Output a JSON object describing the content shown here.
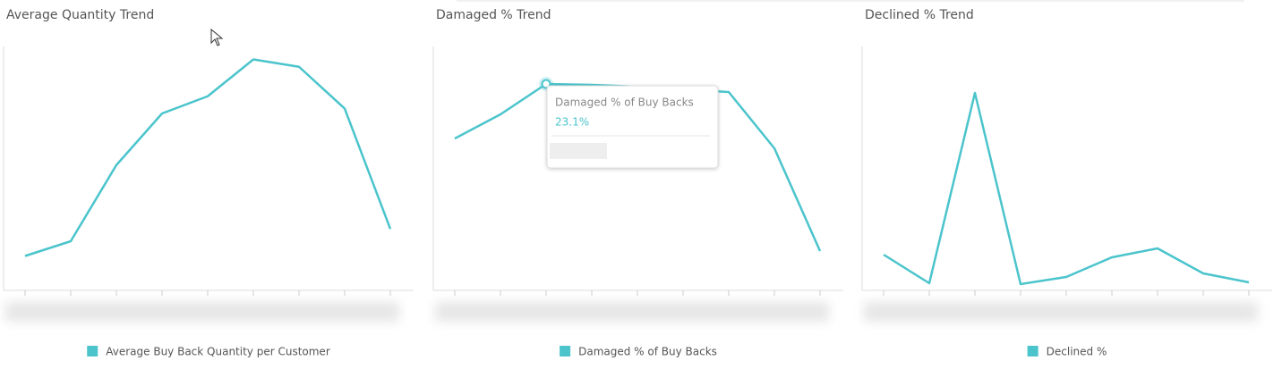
{
  "chart_data": [
    {
      "type": "line",
      "title": "Average Quantity Trend",
      "categories": [
        null,
        null,
        null,
        null,
        null,
        null,
        null,
        null,
        null
      ],
      "series": [
        {
          "name": "Average Buy Back Quantity per Customer",
          "color": "#4bc4cc",
          "values": [
            1.4,
            2.0,
            5.1,
            7.2,
            7.9,
            9.4,
            9.1,
            7.4,
            2.5
          ]
        }
      ],
      "ylim": [
        0,
        10
      ]
    },
    {
      "type": "line",
      "title": "Damaged % Trend",
      "categories": [
        null,
        null,
        null,
        null,
        null,
        null,
        null,
        null,
        null
      ],
      "series": [
        {
          "name": "Damaged % of Buy Backs",
          "color": "#4bc4cc",
          "values": [
            17.0,
            19.7,
            23.1,
            23.0,
            22.8,
            22.5,
            22.2,
            15.9,
            4.4
          ],
          "value_labels": [
            null,
            null,
            "23.1%",
            null,
            null,
            null,
            null,
            null,
            null
          ]
        }
      ],
      "ylim": [
        0,
        27.5
      ]
    },
    {
      "type": "line",
      "title": "Declined % Trend",
      "categories": [
        null,
        null,
        null,
        null,
        null,
        null,
        null,
        null,
        null
      ],
      "series": [
        {
          "name": "Declined %",
          "color": "#4bc4cc",
          "values": [
            4.0,
            0.8,
            22.1,
            0.7,
            1.5,
            3.7,
            4.7,
            1.9,
            0.9
          ]
        }
      ],
      "ylim": [
        0,
        27.5
      ]
    }
  ]
}
